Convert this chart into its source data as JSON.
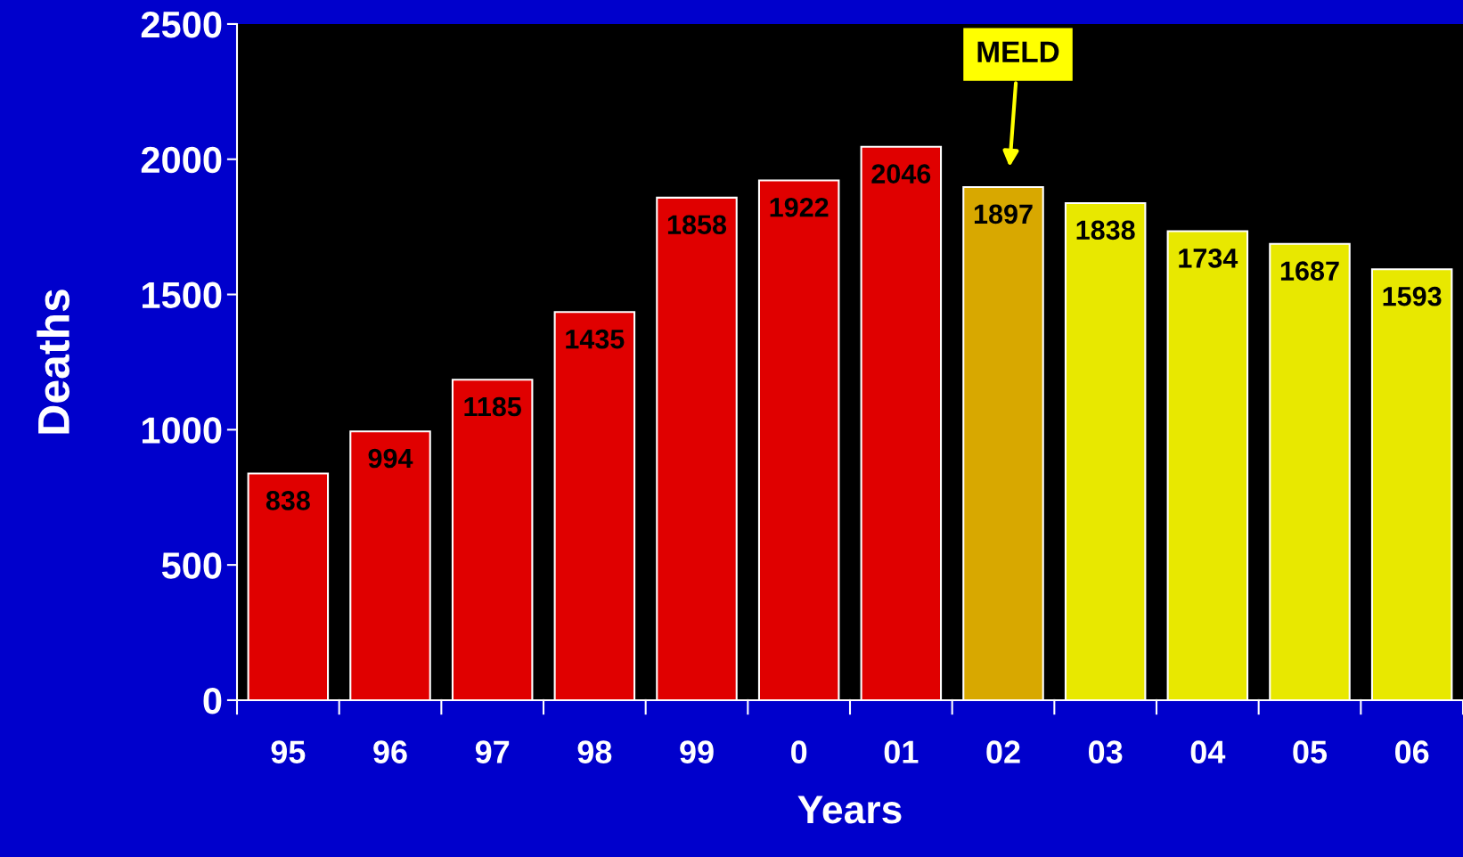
{
  "chart_data": {
    "type": "bar",
    "xlabel": "Years",
    "ylabel": "Deaths",
    "categories": [
      "95",
      "96",
      "97",
      "98",
      "99",
      "0",
      "01",
      "02",
      "03",
      "04",
      "05",
      "06"
    ],
    "values": [
      838,
      994,
      1185,
      1435,
      1858,
      1922,
      2046,
      1897,
      1838,
      1734,
      1687,
      1593
    ],
    "colors": [
      "#e00000",
      "#e00000",
      "#e00000",
      "#e00000",
      "#e00000",
      "#e00000",
      "#e00000",
      "#d8a800",
      "#e8e800",
      "#e8e800",
      "#e8e800",
      "#e8e800"
    ],
    "ylim": [
      0,
      2500
    ],
    "yticks": [
      0,
      500,
      1000,
      1500,
      2000,
      2500
    ],
    "grid": false,
    "data_labels": true,
    "annotations": [
      "MELD"
    ]
  }
}
